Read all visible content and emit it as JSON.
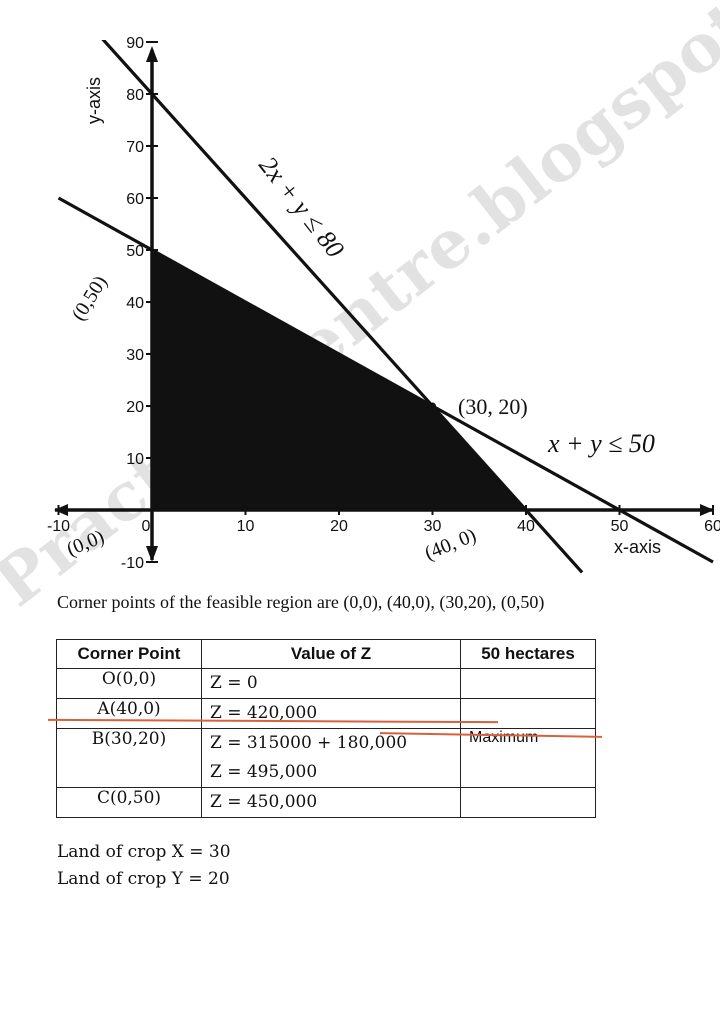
{
  "chart_data": {
    "type": "line",
    "xlabel": "x-axis",
    "ylabel": "y-axis",
    "xlim": [
      -10,
      60
    ],
    "ylim": [
      -10,
      90
    ],
    "x_ticks": [
      "-10",
      "0",
      "10",
      "20",
      "30",
      "40",
      "50",
      "60"
    ],
    "y_ticks": [
      "-10",
      "10",
      "20",
      "30",
      "40",
      "50",
      "60",
      "70",
      "80",
      "90"
    ],
    "grid": false,
    "series": [
      {
        "name": "2x + y ≤ 80",
        "x": [
          -3,
          40
        ],
        "y": [
          86,
          0
        ]
      },
      {
        "name": "x + y ≤ 50",
        "x": [
          -10,
          60
        ],
        "y": [
          60,
          -10
        ]
      }
    ],
    "feasible_region": {
      "x": [
        0,
        40,
        30,
        0
      ],
      "y": [
        0,
        0,
        20,
        50
      ],
      "color": "#111111"
    },
    "point_labels": [
      {
        "text": "(0,0)",
        "x": 0,
        "y": 0
      },
      {
        "text": "(0,50)",
        "x": 0,
        "y": 50
      },
      {
        "text": "(30, 20)",
        "x": 30,
        "y": 20
      },
      {
        "text": "(40, 0)",
        "x": 40,
        "y": 0
      }
    ]
  },
  "text": {
    "corner_points": "Corner points of the feasible region are (0,0), (40,0), (30,20), (0,50)"
  },
  "table": {
    "headers": [
      "Corner Point",
      "Value of Z",
      "50 hectares"
    ],
    "rows": [
      {
        "point": "O(0,0)",
        "value_lines": [
          "Z = 0"
        ],
        "note": ""
      },
      {
        "point": "A(40,0)",
        "value_lines": [
          "Z = 420,000"
        ],
        "note": ""
      },
      {
        "point": "B(30,20)",
        "value_lines": [
          "Z = 315000 + 180,000",
          "Z = 495,000"
        ],
        "note": "Maximum"
      },
      {
        "point": "C(0,50)",
        "value_lines": [
          "Z = 450,000"
        ],
        "note": ""
      }
    ]
  },
  "answers": [
    "Land of crop X = 30",
    "Land of crop Y = 20"
  ],
  "watermark": "Practicalcentre.blogspot.com",
  "colors": {
    "ink": "#111111",
    "watermark": "#969696",
    "annotation": "#d9603b"
  }
}
